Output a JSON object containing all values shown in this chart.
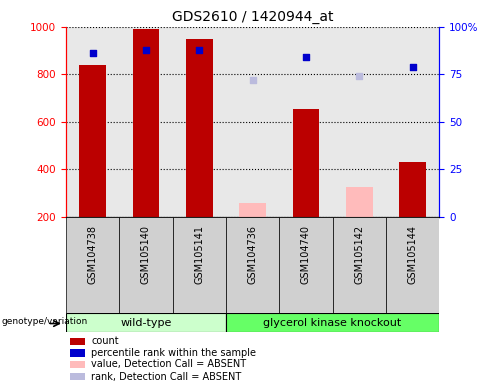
{
  "title": "GDS2610 / 1420944_at",
  "samples": [
    "GSM104738",
    "GSM105140",
    "GSM105141",
    "GSM104736",
    "GSM104740",
    "GSM105142",
    "GSM105144"
  ],
  "count_values": [
    840,
    990,
    950,
    null,
    655,
    null,
    430
  ],
  "count_absent_values": [
    null,
    null,
    null,
    260,
    null,
    325,
    null
  ],
  "rank_values": [
    86,
    88,
    88,
    null,
    84,
    null,
    79
  ],
  "rank_absent_values": [
    null,
    null,
    null,
    72,
    null,
    74,
    null
  ],
  "count_color": "#bb0000",
  "count_absent_color": "#ffbbbb",
  "rank_color": "#0000cc",
  "rank_absent_color": "#bbbbdd",
  "ylim_left": [
    200,
    1000
  ],
  "ylim_right": [
    0,
    100
  ],
  "yticks_left": [
    200,
    400,
    600,
    800,
    1000
  ],
  "yticks_right": [
    0,
    25,
    50,
    75,
    100
  ],
  "yticklabels_right": [
    "0",
    "25",
    "50",
    "75",
    "100%"
  ],
  "group1_label": "wild-type",
  "group2_label": "glycerol kinase knockout",
  "group1_color": "#ccffcc",
  "group2_color": "#66ff66",
  "group_label_text": "genotype/variation",
  "bar_width": 0.5,
  "plot_bg": "#e8e8e8",
  "sample_bg": "#d0d0d0",
  "legend_items": [
    {
      "color": "#bb0000",
      "label": "count"
    },
    {
      "color": "#0000cc",
      "label": "percentile rank within the sample"
    },
    {
      "color": "#ffbbbb",
      "label": "value, Detection Call = ABSENT"
    },
    {
      "color": "#bbbbdd",
      "label": "rank, Detection Call = ABSENT"
    }
  ],
  "n_wt": 3,
  "n_total": 7
}
